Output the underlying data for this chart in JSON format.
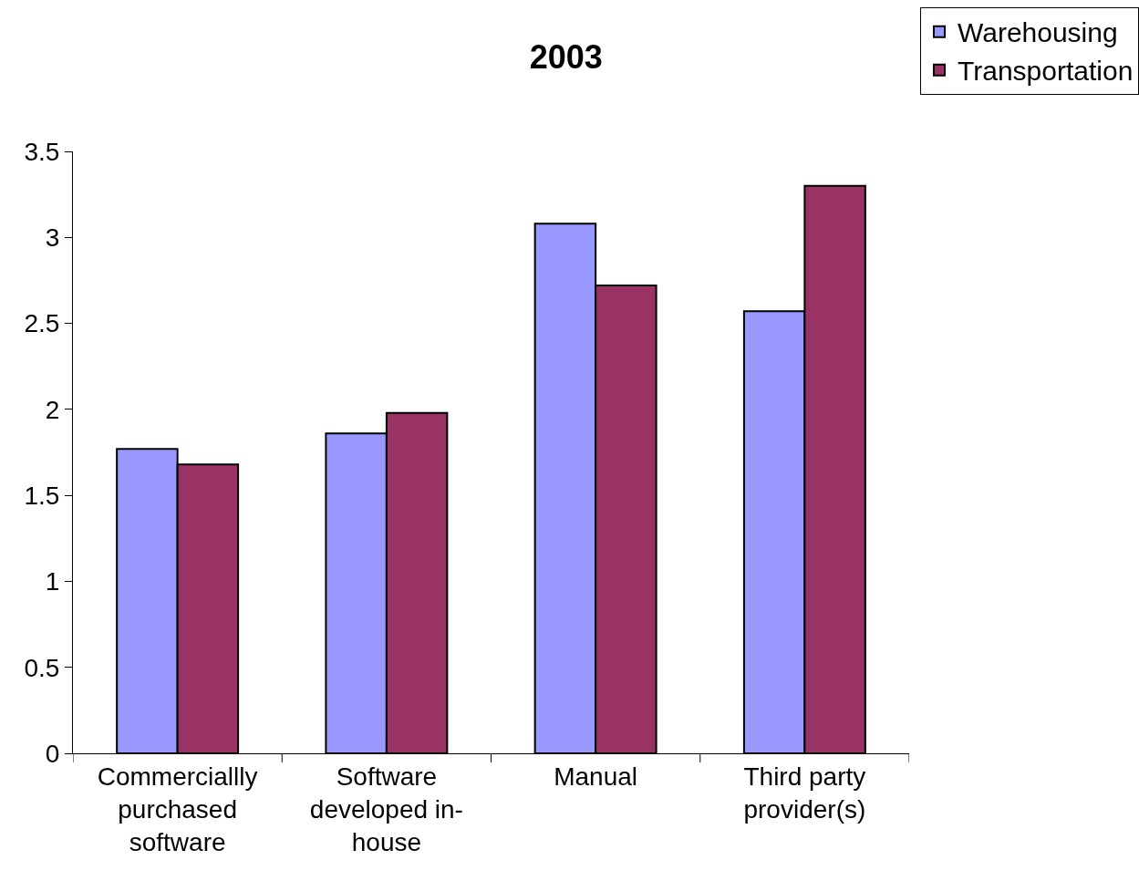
{
  "chart_data": {
    "type": "bar",
    "title": "2003",
    "categories": [
      "Commerciallly purchased software",
      "Software developed in-house",
      "Manual",
      "Third party provider(s)"
    ],
    "series": [
      {
        "name": "Warehousing",
        "color": "#9999ff",
        "values": [
          1.77,
          1.86,
          3.08,
          2.57
        ]
      },
      {
        "name": "Transportation",
        "color": "#993366",
        "values": [
          1.68,
          1.98,
          2.72,
          3.3
        ]
      }
    ],
    "ylim": [
      0,
      3.5
    ],
    "yticks": [
      0,
      0.5,
      1,
      1.5,
      2,
      2.5,
      3,
      3.5
    ],
    "grid": false,
    "legend": "top right"
  }
}
